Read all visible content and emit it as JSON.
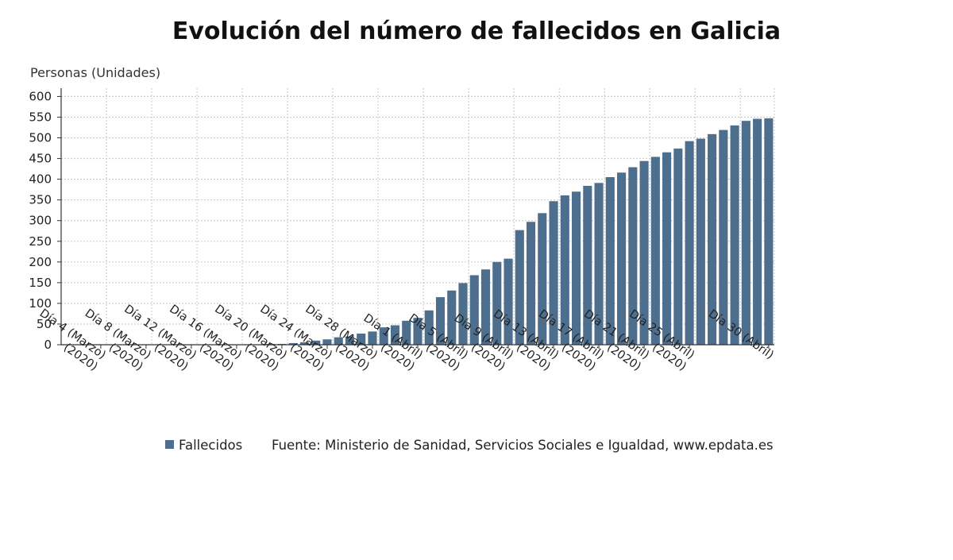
{
  "chart_data": {
    "type": "bar",
    "title": "Evolución del número de fallecidos en Galicia",
    "ylabel": "Personas (Unidades)",
    "xlabel": "",
    "ylim": [
      0,
      620
    ],
    "y_ticks": [
      0,
      50,
      100,
      150,
      200,
      250,
      300,
      350,
      400,
      450,
      500,
      550,
      600
    ],
    "grid": true,
    "legend_position": "bottom",
    "bar_color": "#4e6e8e",
    "x_tick_labels": [
      {
        "line1": "Día 4 (Marzo)",
        "line2": "(2020)"
      },
      {
        "line1": "Día 8 (Marzo)",
        "line2": "(2020)"
      },
      {
        "line1": "Día 12 (Marzo)",
        "line2": "(2020)"
      },
      {
        "line1": "Día 16 (Marzo)",
        "line2": "(2020)"
      },
      {
        "line1": "Día 20 (Marzo)",
        "line2": "(2020)"
      },
      {
        "line1": "Día 24 (Marzo)",
        "line2": "(2020)"
      },
      {
        "line1": "Día 28 (Marzo)",
        "line2": "(2020)"
      },
      {
        "line1": "Día 1 (Abril)",
        "line2": "(2020)"
      },
      {
        "line1": "Día 5 (Abril)",
        "line2": "(2020)"
      },
      {
        "line1": "Día 9 (Abril)",
        "line2": "(2020)"
      },
      {
        "line1": "Día 13 (Abril)",
        "line2": "(2020)"
      },
      {
        "line1": "Día 17 (Abril)",
        "line2": "(2020)"
      },
      {
        "line1": "Día 21 (Abril)",
        "line2": "(2020)"
      },
      {
        "line1": "Día 25 (Abril)",
        "line2": "(2020)"
      },
      {
        "line1": "Día 30 (Abril)",
        "line2": ""
      }
    ],
    "series": [
      {
        "name": "Fallecidos",
        "values": [
          0,
          0,
          0,
          0,
          0,
          0,
          0,
          0,
          0,
          0,
          0,
          0,
          0,
          0,
          0,
          0,
          1,
          1,
          2,
          2,
          4,
          6,
          10,
          13,
          18,
          20,
          27,
          32,
          42,
          47,
          58,
          65,
          83,
          115,
          131,
          149,
          168,
          182,
          200,
          208,
          277,
          297,
          318,
          347,
          361,
          370,
          384,
          391,
          405,
          416,
          429,
          444,
          454,
          465,
          474,
          492,
          498,
          509,
          519,
          530,
          541,
          546,
          547
        ]
      }
    ],
    "legend": [
      "Fallecidos"
    ],
    "source": "Fuente: Ministerio de Sanidad, Servicios Sociales e Igualdad, www.epdata.es"
  }
}
